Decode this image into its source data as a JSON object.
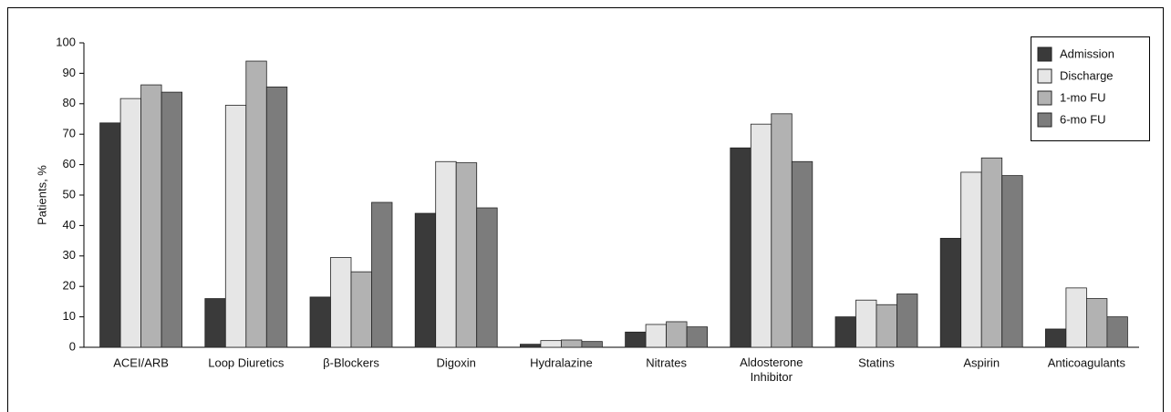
{
  "chart_data": {
    "type": "bar",
    "ylabel": "Patients, %",
    "categories": [
      "ACEI/ARB",
      "Loop Diuretics",
      "β-Blockers",
      "Digoxin",
      "Hydralazine",
      "Nitrates",
      "Aldosterone Inhibitor",
      "Statins",
      "Aspirin",
      "Anticoagulants"
    ],
    "series": [
      {
        "name": "Admission",
        "color": "#3a3a3a",
        "values": [
          73.7,
          16,
          16.5,
          44,
          1,
          5,
          65.5,
          10,
          35.8,
          6
        ]
      },
      {
        "name": "Discharge",
        "color": "#e6e6e6",
        "values": [
          81.7,
          79.5,
          29.5,
          61,
          2.2,
          7.5,
          73.3,
          15.5,
          57.5,
          19.5
        ]
      },
      {
        "name": "1-mo FU",
        "color": "#b2b2b2",
        "values": [
          86.2,
          94,
          24.8,
          60.6,
          2.4,
          8.4,
          76.7,
          14,
          62.2,
          16
        ]
      },
      {
        "name": "6-mo FU",
        "color": "#7c7c7c",
        "values": [
          83.8,
          85.5,
          47.6,
          45.8,
          1.9,
          6.7,
          61,
          17.5,
          56.4,
          10
        ]
      }
    ],
    "ylim": [
      0,
      100
    ],
    "yticks": [
      0,
      10,
      20,
      30,
      40,
      50,
      60,
      70,
      80,
      90,
      100
    ],
    "grid": false,
    "legend": "top-right"
  }
}
